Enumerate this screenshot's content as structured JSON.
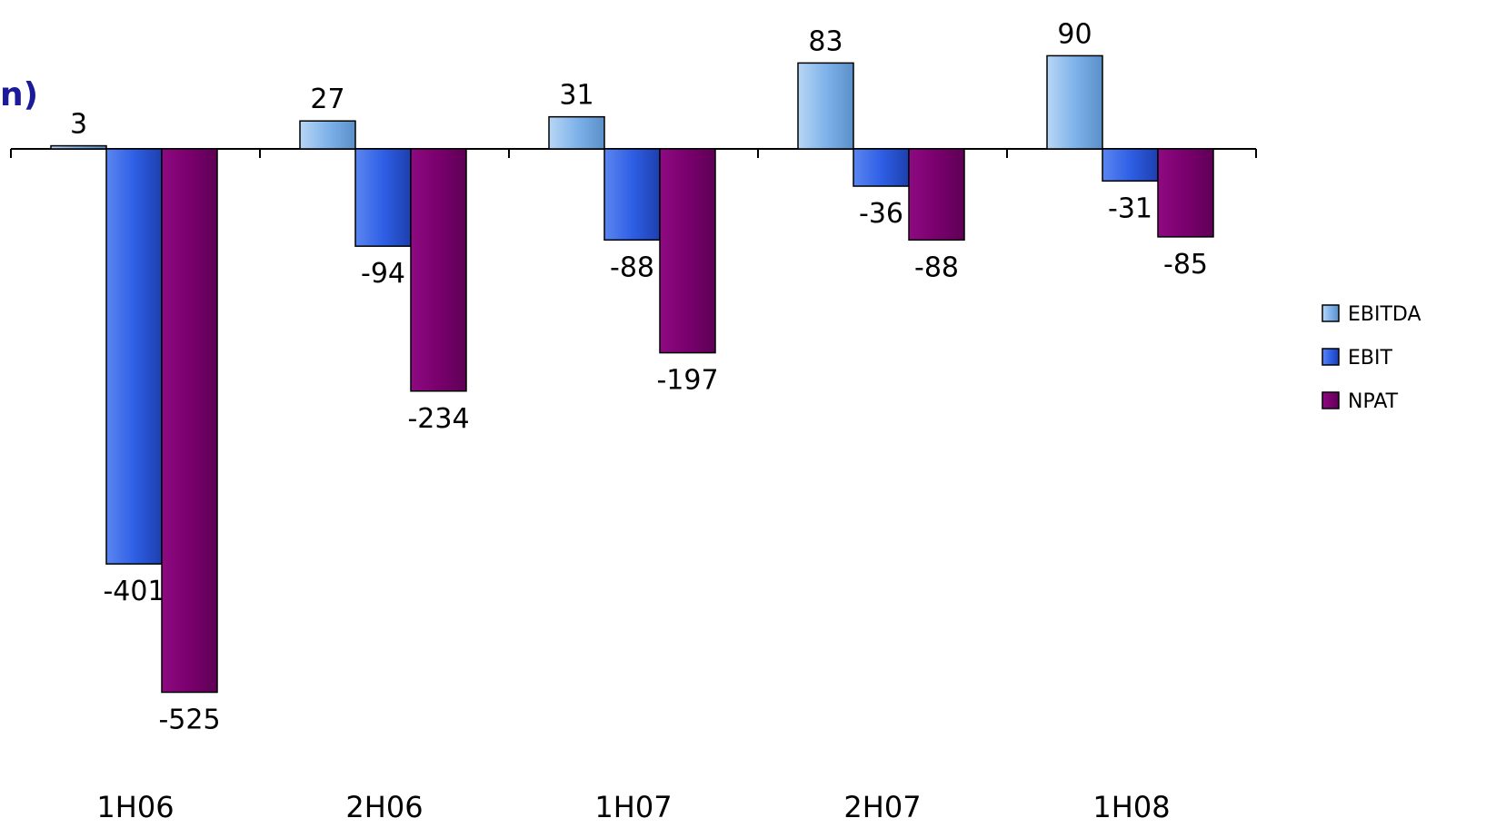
{
  "title_fragment": "n)",
  "chart_data": {
    "type": "bar",
    "categories": [
      "1H06",
      "2H06",
      "1H07",
      "2H07",
      "1H08"
    ],
    "series": [
      {
        "name": "EBITDA",
        "values": [
          3,
          27,
          31,
          83,
          90
        ],
        "color": "#7fb3ea"
      },
      {
        "name": "EBIT",
        "values": [
          -401,
          -94,
          -88,
          -36,
          -31
        ],
        "color": "#2f5fe6"
      },
      {
        "name": "NPAT",
        "values": [
          -525,
          -234,
          -197,
          -88,
          -85
        ],
        "color": "#7a006e"
      }
    ],
    "data_labels": [
      [
        "3",
        "27",
        "31",
        "83",
        "90"
      ],
      [
        "-401",
        "-94",
        "-88",
        "-36",
        "-31"
      ],
      [
        "-525",
        "-234",
        "-197",
        "-88",
        "-85"
      ]
    ],
    "ylim": [
      -525,
      90
    ],
    "legend_position": "right",
    "grid": false
  }
}
